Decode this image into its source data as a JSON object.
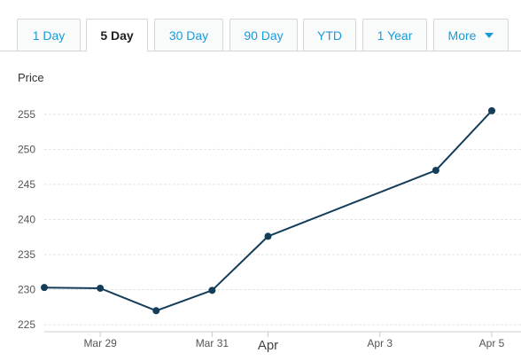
{
  "tabs": [
    {
      "label": "1 Day",
      "active": false
    },
    {
      "label": "5 Day",
      "active": true
    },
    {
      "label": "30 Day",
      "active": false
    },
    {
      "label": "90 Day",
      "active": false
    },
    {
      "label": "YTD",
      "active": false
    },
    {
      "label": "1 Year",
      "active": false
    },
    {
      "label": "More",
      "active": false,
      "icon": "caret-down-icon"
    }
  ],
  "colors": {
    "line": "#143d59",
    "tab_link": "#1a9bd7",
    "grid": "#e3e3e3"
  },
  "chart_data": {
    "type": "line",
    "ylabel": "Price",
    "ylim": [
      224,
      257
    ],
    "yticks": [
      225,
      230,
      235,
      240,
      245,
      250,
      255
    ],
    "grid": true,
    "x_ticks": [
      {
        "label": "Mar 29",
        "x": 1
      },
      {
        "label": "Mar 31",
        "x": 3
      },
      {
        "label": "Apr",
        "x": 4,
        "major": true
      },
      {
        "label": "Apr 3",
        "x": 6
      },
      {
        "label": "Apr 5",
        "x": 8
      }
    ],
    "xlim": [
      0,
      8
    ],
    "series": [
      {
        "points": [
          {
            "x": 0,
            "y": 230.3
          },
          {
            "x": 1,
            "y": 230.2
          },
          {
            "x": 2,
            "y": 227.0
          },
          {
            "x": 3,
            "y": 229.9
          },
          {
            "x": 4,
            "y": 237.6
          },
          {
            "x": 7,
            "y": 247.0
          },
          {
            "x": 8,
            "y": 255.5
          }
        ]
      }
    ]
  }
}
